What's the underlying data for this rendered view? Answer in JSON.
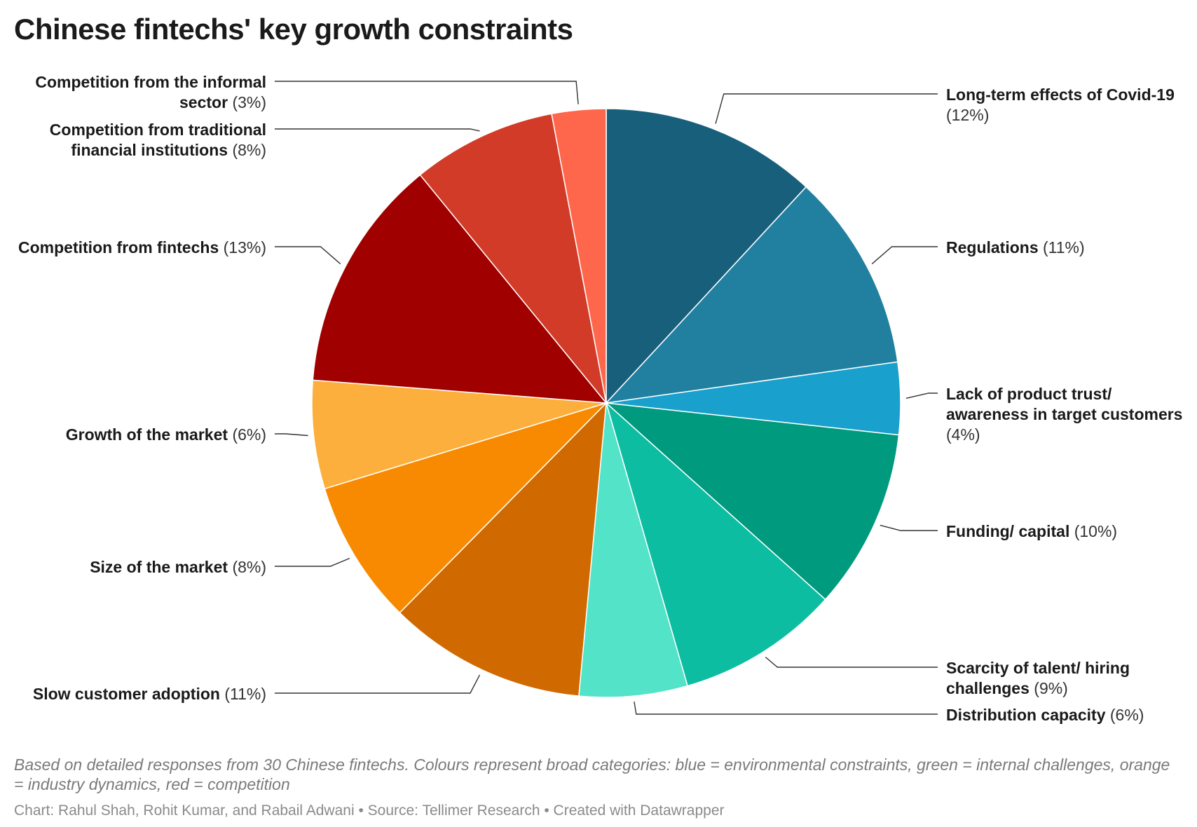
{
  "title": "Chinese fintechs' key growth constraints",
  "chart_data": {
    "type": "pie",
    "title": "Chinese fintechs' key growth constraints",
    "unit": "%",
    "slices": [
      {
        "name": "Long-term effects of Covid-19",
        "value": 12,
        "pct_label": "(12%)",
        "color": "#185F7C",
        "side": "right",
        "lines": [
          "Long-term effects of Covid-19",
          "(12%)"
        ]
      },
      {
        "name": "Regulations",
        "value": 11,
        "pct_label": "(11%)",
        "color": "#2180A0",
        "side": "right",
        "lines": [
          "Regulations (11%)"
        ]
      },
      {
        "name": "Lack of product trust/ awareness in target customers",
        "value": 4,
        "pct_label": "(4%)",
        "color": "#1AA0CC",
        "side": "right",
        "lines": [
          "Lack of product trust/",
          "awareness in target customers",
          "(4%)"
        ]
      },
      {
        "name": "Funding/ capital",
        "value": 10,
        "pct_label": "(10%)",
        "color": "#009A7F",
        "side": "right",
        "lines": [
          "Funding/ capital (10%)"
        ]
      },
      {
        "name": "Scarcity of talent/ hiring challenges",
        "value": 9,
        "pct_label": "(9%)",
        "color": "#0DBDA1",
        "side": "right",
        "lines": [
          "Scarcity of talent/ hiring",
          "challenges (9%)"
        ]
      },
      {
        "name": "Distribution capacity",
        "value": 6,
        "pct_label": "(6%)",
        "color": "#52E3C8",
        "side": "right",
        "lines": [
          "Distribution capacity (6%)"
        ]
      },
      {
        "name": "Slow customer adoption",
        "value": 11,
        "pct_label": "(11%)",
        "color": "#D06A00",
        "side": "left",
        "lines": [
          "Slow customer adoption (11%)"
        ]
      },
      {
        "name": "Size of the market",
        "value": 8,
        "pct_label": "(8%)",
        "color": "#F78A00",
        "side": "left",
        "lines": [
          "Size of the market (8%)"
        ]
      },
      {
        "name": "Growth of the market",
        "value": 6,
        "pct_label": "(6%)",
        "color": "#FCAF3C",
        "side": "left",
        "lines": [
          "Growth of the market (6%)"
        ]
      },
      {
        "name": "Competition from fintechs",
        "value": 13,
        "pct_label": "(13%)",
        "color": "#A00000",
        "side": "left",
        "lines": [
          "Competition from fintechs (13%)"
        ]
      },
      {
        "name": "Competition from traditional financial institutions",
        "value": 8,
        "pct_label": "(8%)",
        "color": "#D23B27",
        "side": "left",
        "lines": [
          "Competition from traditional",
          "financial institutions (8%)"
        ]
      },
      {
        "name": "Competition from the informal sector",
        "value": 3,
        "pct_label": "(3%)",
        "color": "#FF674C",
        "side": "left",
        "lines": [
          "Competition from the informal",
          "sector (3%)"
        ]
      }
    ]
  },
  "notes": "Based on detailed responses from 30 Chinese fintechs. Colours represent broad categories: blue = environmental constraints, green = internal challenges, orange = industry dynamics, red = competition",
  "credits": "Chart: Rahul Shah, Rohit Kumar, and Rabail Adwani • Source: Tellimer Research • Created with Datawrapper"
}
